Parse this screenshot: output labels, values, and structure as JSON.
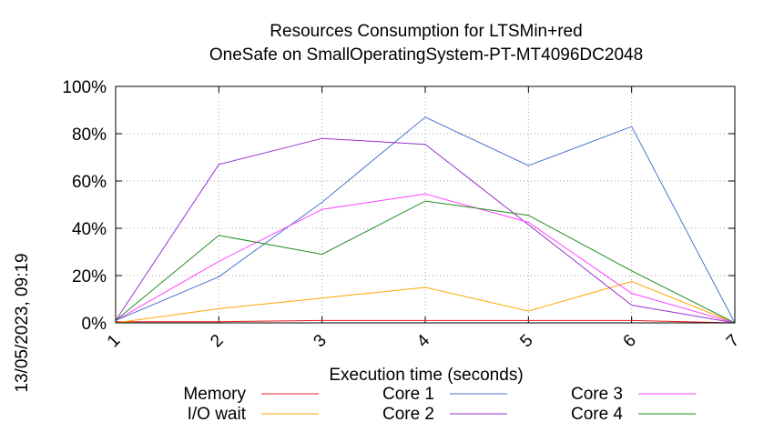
{
  "chart_data": {
    "type": "line",
    "title": [
      "Resources Consumption for LTSMin+red",
      "OneSafe on SmallOperatingSystem-PT-MT4096DC2048"
    ],
    "xlabel": "Execution time (seconds)",
    "ylabel": "",
    "side_label": "13/05/2023, 09:19",
    "xlim": [
      1,
      7
    ],
    "ylim": [
      0,
      100
    ],
    "x_ticks": [
      "1",
      "2",
      "3",
      "4",
      "5",
      "6",
      "7"
    ],
    "y_ticks": [
      "0%",
      "20%",
      "40%",
      "60%",
      "80%",
      "100%"
    ],
    "grid": true,
    "legend_position": "bottom",
    "x": [
      1,
      2,
      3,
      4,
      5,
      6,
      7
    ],
    "series": [
      {
        "name": "Memory",
        "color": "#e41a1c",
        "values": [
          0.5,
          0.5,
          1,
          1,
          1,
          1,
          0
        ]
      },
      {
        "name": "I/O wait",
        "color": "#ffa500",
        "values": [
          0,
          6,
          10.5,
          15,
          5,
          17.5,
          0
        ]
      },
      {
        "name": "Core 1",
        "color": "#4a73cf",
        "values": [
          1,
          19.5,
          51,
          87,
          66.5,
          83,
          0
        ]
      },
      {
        "name": "Core 2",
        "color": "#9932cc",
        "values": [
          1,
          67,
          78,
          75.5,
          41.5,
          7.5,
          0
        ]
      },
      {
        "name": "Core 3",
        "color": "#ff40ff",
        "values": [
          1,
          26,
          48,
          54.5,
          42.5,
          12.5,
          0
        ]
      },
      {
        "name": "Core 4",
        "color": "#228b22",
        "values": [
          1,
          37,
          29,
          51.5,
          45.5,
          22,
          0
        ]
      }
    ]
  }
}
